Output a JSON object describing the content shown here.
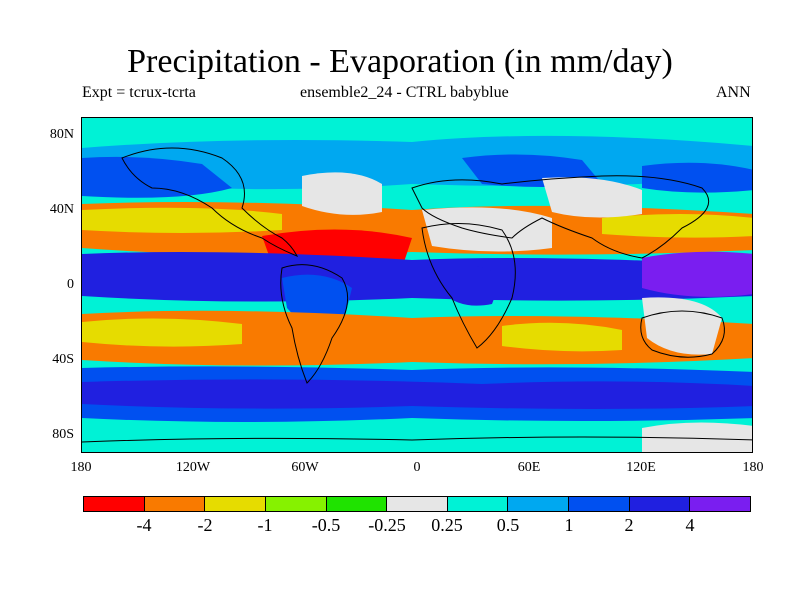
{
  "title": "Precipitation - Evaporation (in mm/day)",
  "subtitle_left": "Expt = tcrux-tcrta",
  "subtitle_center": "ensemble2_24 - CTRL babyblue",
  "subtitle_right": "ANN",
  "lat_labels": [
    "80N",
    "40N",
    "0",
    "40S",
    "80S"
  ],
  "lon_labels": [
    "180",
    "120W",
    "60W",
    "0",
    "60E",
    "120E",
    "180"
  ],
  "colorbar": {
    "colors": [
      "#ff0000",
      "#f97a00",
      "#e6dc00",
      "#86f200",
      "#1fe300",
      "#e6e6e6",
      "#00f2d6",
      "#00a8f0",
      "#0050f0",
      "#2020e0",
      "#7a1ef0"
    ],
    "labels": [
      "-4",
      "-2",
      "-1",
      "-0.5",
      "-0.25",
      "0.25",
      "0.5",
      "1",
      "2",
      "4"
    ]
  }
}
